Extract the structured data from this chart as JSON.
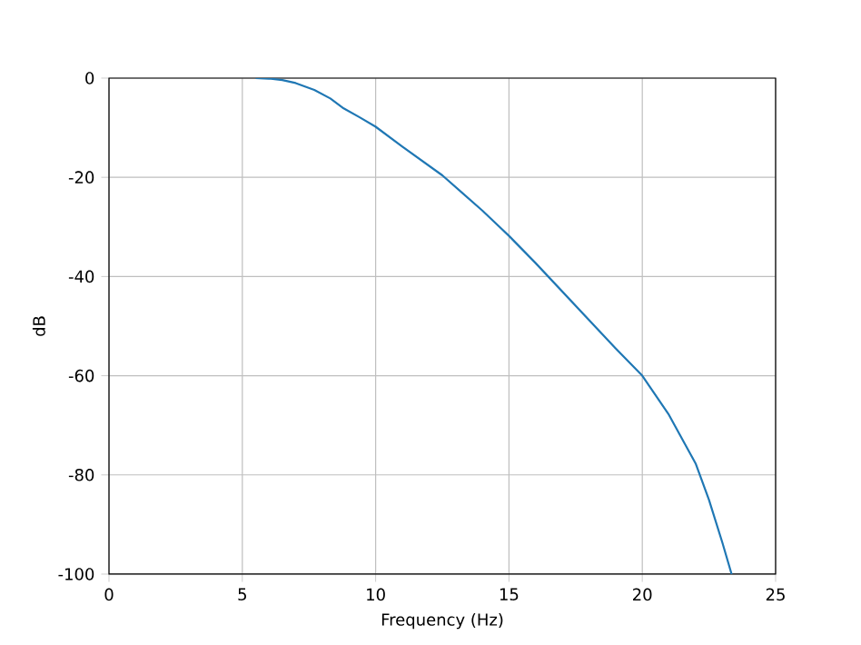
{
  "chart_data": {
    "type": "line",
    "xlabel": "Frequency (Hz)",
    "ylabel": "dB",
    "x": [
      5.5,
      6.0,
      6.5,
      7.0,
      7.7,
      8.3,
      8.8,
      9.4,
      10,
      11,
      12.5,
      14,
      15,
      16,
      17.5,
      19,
      20,
      21,
      22,
      22.5,
      23,
      23.35
    ],
    "series": [
      {
        "color": "#1f77b4",
        "values": [
          0,
          -0.1,
          -0.4,
          -1.0,
          -2.4,
          -4.1,
          -6.1,
          -7.9,
          -9.8,
          -13.8,
          -19.6,
          -26.7,
          -31.8,
          -37.3,
          -45.9,
          -54.5,
          -60,
          -67.9,
          -77.7,
          -85,
          -93.6,
          -100
        ]
      }
    ],
    "xlim": [
      0,
      25
    ],
    "ylim": [
      -100,
      0
    ],
    "xticks": [
      0,
      5,
      10,
      15,
      20,
      25
    ],
    "yticks": [
      -100,
      -80,
      -60,
      -40,
      -20,
      0
    ],
    "grid": true,
    "line_style": "solid",
    "marker": "none"
  }
}
